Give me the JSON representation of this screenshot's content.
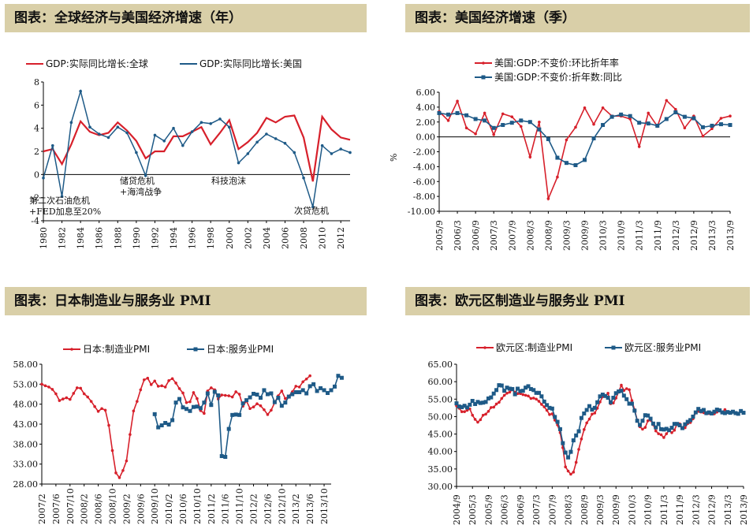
{
  "titles": {
    "p1": "图表：全球经济与美国经济增速（年）",
    "p2": "图表：美国经济增速（季）",
    "p3": "图表：日本制造业与服务业 PMI",
    "p4": "图表：欧元区制造业与服务业 PMI"
  },
  "colors": {
    "red": "#d7202b",
    "blue": "#1e5a87",
    "title_bg": "#d9cfa8"
  },
  "chart_data": [
    {
      "type": "line",
      "ylim": [
        -4,
        8
      ],
      "yticks": [
        "8",
        "6",
        "4",
        "2",
        "0",
        "-2",
        "-4"
      ],
      "xtick_labels": [
        "1980",
        "1982",
        "1984",
        "1986",
        "1988",
        "1990",
        "1992",
        "1994",
        "1996",
        "1998",
        "2000",
        "2002",
        "2004",
        "2006",
        "2008",
        "2010",
        "2012"
      ],
      "x": [
        1980,
        1981,
        1982,
        1983,
        1984,
        1985,
        1986,
        1987,
        1988,
        1989,
        1990,
        1991,
        1992,
        1993,
        1994,
        1995,
        1996,
        1997,
        1998,
        1999,
        2000,
        2001,
        2002,
        2003,
        2004,
        2005,
        2006,
        2007,
        2008,
        2009,
        2010,
        2011,
        2012,
        2013
      ],
      "series": [
        {
          "name": "GDP:实际同比增长:全球",
          "color": "#d7202b",
          "values": [
            2.0,
            2.2,
            0.9,
            2.6,
            4.6,
            3.7,
            3.4,
            3.6,
            4.5,
            3.8,
            2.9,
            1.4,
            2.0,
            2.0,
            3.3,
            3.3,
            3.7,
            4.1,
            2.6,
            3.6,
            4.7,
            2.2,
            2.8,
            3.6,
            4.9,
            4.5,
            5.0,
            5.1,
            3.2,
            -0.6,
            5.0,
            3.9,
            3.2,
            3.0
          ]
        },
        {
          "name": "GDP:实际同比增长:美国",
          "color": "#1e5a87",
          "values": [
            -0.3,
            2.5,
            -1.9,
            4.5,
            7.2,
            4.1,
            3.5,
            3.2,
            4.1,
            3.6,
            1.9,
            -0.1,
            3.4,
            2.9,
            4.0,
            2.5,
            3.7,
            4.5,
            4.4,
            4.8,
            4.1,
            1.0,
            1.8,
            2.8,
            3.5,
            3.1,
            2.7,
            1.9,
            -0.3,
            -2.8,
            2.5,
            1.8,
            2.2,
            1.9
          ]
        }
      ],
      "annotations": [
        "第二次石油危机",
        "+FED加息至20%",
        "储贷危机",
        "+海湾战争",
        "科技泡沫",
        "次贷危机"
      ]
    },
    {
      "type": "line",
      "ylabel": "%",
      "ylim": [
        -10,
        6
      ],
      "yticks": [
        "6.00",
        "4.00",
        "2.00",
        "0.00",
        "-2.00",
        "-4.00",
        "-6.00",
        "-8.00",
        "-10.00"
      ],
      "xtick_labels": [
        "2005/9",
        "2006/3",
        "2006/9",
        "2007/3",
        "2007/9",
        "2008/3",
        "2008/9",
        "2009/3",
        "2009/9",
        "2010/3",
        "2010/9",
        "2011/3",
        "2011/9",
        "2012/3",
        "2012/9",
        "2013/3",
        "2013/9"
      ],
      "series": [
        {
          "name": "美国:GDP:不变价:环比折年率",
          "color": "#d7202b",
          "marker": "dot",
          "values": [
            3.4,
            2.2,
            4.8,
            1.2,
            0.4,
            3.2,
            0.3,
            3.1,
            2.7,
            1.4,
            -2.7,
            2.0,
            -8.3,
            -5.4,
            -0.4,
            1.3,
            3.9,
            1.7,
            3.9,
            2.8,
            2.8,
            2.4,
            -1.3,
            3.2,
            1.4,
            4.9,
            3.7,
            1.2,
            2.8,
            0.1,
            1.1,
            2.5,
            2.8
          ]
        },
        {
          "name": "美国:GDP:不变价:折年数:同比",
          "color": "#1e5a87",
          "marker": "square",
          "values": [
            3.2,
            3.0,
            3.2,
            2.9,
            2.4,
            2.2,
            1.2,
            1.6,
            1.9,
            2.2,
            2.0,
            1.0,
            -0.3,
            -2.8,
            -3.5,
            -3.8,
            -3.1,
            -0.2,
            1.6,
            2.7,
            3.0,
            2.8,
            1.9,
            1.8,
            1.5,
            2.4,
            3.3,
            2.7,
            2.5,
            1.3,
            1.5,
            1.7,
            1.6
          ]
        }
      ]
    },
    {
      "type": "line",
      "ylim": [
        28,
        58
      ],
      "yticks": [
        "58.00",
        "53.00",
        "48.00",
        "43.00",
        "38.00",
        "33.00",
        "28.00"
      ],
      "xtick_labels": [
        "2007/2",
        "2007/6",
        "2007/10",
        "2008/2",
        "2008/6",
        "2008/10",
        "2009/2",
        "2009/6",
        "2009/10",
        "2010/2",
        "2010/6",
        "2010/10",
        "2011/2",
        "2011/6",
        "2011/10",
        "2012/2",
        "2012/6",
        "2012/10",
        "2013/2",
        "2013/6",
        "2013/10"
      ],
      "n": 83,
      "series": [
        {
          "name": "日本:制造业PMI",
          "color": "#d7202b",
          "start_index": 0,
          "values": [
            53.0,
            52.6,
            52.3,
            51.7,
            50.6,
            48.9,
            49.3,
            49.6,
            49.2,
            50.7,
            52.1,
            52.0,
            50.6,
            49.8,
            48.7,
            47.4,
            46.2,
            46.9,
            46.5,
            42.7,
            36.4,
            30.8,
            29.6,
            31.4,
            33.8,
            40.4,
            46.3,
            48.7,
            51.6,
            54.1,
            54.5,
            52.9,
            53.8,
            52.5,
            52.6,
            52.3,
            53.9,
            54.4,
            53.3,
            51.9,
            50.8,
            48.4,
            48.6,
            50.9,
            49.4,
            46.4,
            45.7,
            51.3,
            52.1,
            51.6,
            49.3,
            50.3,
            50.2,
            50.1,
            49.8,
            51.1,
            50.5,
            47.5,
            48.8,
            46.9,
            47.3,
            48.1,
            47.6,
            46.6,
            45.4,
            46.5,
            48.4,
            50.1,
            51.3,
            49.4,
            50.0,
            51.1,
            52.5,
            52.3,
            53.6,
            54.3,
            55.1
          ]
        },
        {
          "name": "日本:服务业PMI",
          "color": "#1e5a87",
          "start_index": 32,
          "values": [
            45.5,
            42.2,
            42.7,
            43.3,
            42.9,
            44.0,
            48.4,
            49.3,
            47.2,
            46.8,
            46.3,
            47.3,
            47.4,
            47.0,
            48.4,
            50.7,
            47.8,
            51.1,
            50.2,
            35.0,
            34.8,
            41.8,
            45.3,
            45.4,
            45.3,
            48.2,
            49.0,
            49.7,
            50.6,
            50.4,
            49.6,
            51.5,
            50.5,
            50.7,
            48.5,
            49.6,
            47.6,
            48.4,
            49.9,
            50.5,
            51.0,
            51.0,
            51.5,
            50.7,
            52.5,
            53.0,
            51.3,
            52.0,
            51.5,
            50.8,
            51.5,
            52.4,
            55.1,
            54.6
          ]
        }
      ]
    },
    {
      "type": "line",
      "ylim": [
        30,
        65
      ],
      "yticks": [
        "65.00",
        "60.00",
        "55.00",
        "50.00",
        "45.00",
        "40.00",
        "35.00",
        "30.00"
      ],
      "xtick_labels": [
        "2004/9",
        "2005/3",
        "2005/9",
        "2006/3",
        "2006/9",
        "2007/3",
        "2007/9",
        "2008/3",
        "2008/9",
        "2009/3",
        "2009/9",
        "2010/3",
        "2010/9",
        "2011/3",
        "2011/9",
        "2012/3",
        "2012/9",
        "2013/3",
        "2013/9"
      ],
      "n": 109,
      "series": [
        {
          "name": "欧元区:制造业PMI",
          "color": "#d7202b",
          "values": [
            53.1,
            52.4,
            51.4,
            51.4,
            51.8,
            52.2,
            50.4,
            49.2,
            48.4,
            49.1,
            50.4,
            50.7,
            51.5,
            52.6,
            52.7,
            53.6,
            54.1,
            55.2,
            56.1,
            56.7,
            57.0,
            57.7,
            57.0,
            56.6,
            56.6,
            56.3,
            56.1,
            55.9,
            55.2,
            55.3,
            55.0,
            54.4,
            53.5,
            52.8,
            51.8,
            50.6,
            50.8,
            49.0,
            47.6,
            45.4,
            41.1,
            35.6,
            34.4,
            33.5,
            34.1,
            36.9,
            40.6,
            43.6,
            46.3,
            48.2,
            49.3,
            50.7,
            51.0,
            52.4,
            54.2,
            55.7,
            55.8,
            56.7,
            53.7,
            53.9,
            55.3,
            57.1,
            59.0,
            57.5,
            58.0,
            57.7,
            54.6,
            52.0,
            49.0,
            47.1,
            46.4,
            46.9,
            48.8,
            49.0,
            47.7,
            45.9,
            45.1,
            44.8,
            44.0,
            45.1,
            46.1,
            45.4,
            46.1,
            47.9,
            47.9,
            46.8,
            46.8,
            48.0,
            48.3,
            49.4,
            51.1,
            51.5,
            51.3,
            51.1,
            50.8,
            50.9,
            51.0,
            50.8,
            51.3,
            51.6,
            51.3,
            52.0,
            51.3,
            51.1,
            51.4,
            51.0,
            50.9,
            51.6,
            51.0
          ]
        },
        {
          "name": "欧元区:服务业PMI",
          "color": "#1e5a87",
          "values": [
            53.8,
            52.9,
            52.7,
            53.1,
            52.6,
            53.4,
            54.5,
            53.6,
            54.2,
            53.9,
            54.0,
            54.2,
            55.2,
            55.5,
            56.6,
            57.6,
            59.0,
            58.9,
            57.4,
            58.3,
            58.0,
            57.9,
            56.4,
            58.0,
            57.3,
            57.4,
            58.3,
            58.7,
            57.9,
            57.6,
            56.8,
            56.8,
            55.8,
            54.3,
            53.3,
            52.5,
            52.3,
            49.9,
            48.5,
            46.4,
            42.4,
            39.7,
            38.3,
            39.9,
            43.2,
            44.6,
            45.8,
            49.6,
            50.9,
            51.9,
            53.0,
            52.0,
            52.5,
            54.1,
            55.8,
            56.3,
            55.9,
            55.4,
            54.1,
            55.4,
            56.7,
            57.2,
            57.4,
            56.0,
            55.0,
            53.7,
            53.7,
            51.7,
            48.8,
            47.6,
            48.8,
            50.4,
            50.3,
            49.4,
            48.0,
            46.9,
            47.9,
            46.4,
            46.3,
            46.5,
            46.1,
            46.8,
            47.9,
            47.9,
            47.5,
            46.7,
            47.8,
            48.5,
            49.0,
            50.0,
            51.2,
            52.2,
            51.6,
            51.9,
            51.0,
            51.2,
            50.9,
            51.4,
            52.0,
            51.8,
            51.2,
            51.0,
            51.3,
            51.1,
            51.4,
            51.0,
            50.8,
            51.6,
            51.1
          ]
        }
      ]
    }
  ]
}
